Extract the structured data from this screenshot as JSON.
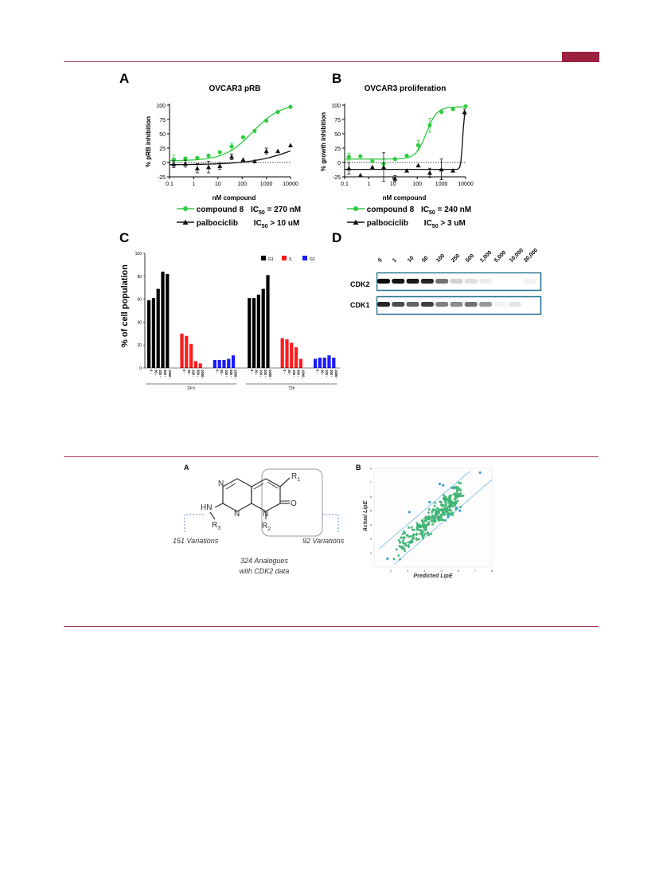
{
  "header": {
    "accent_color": "#9c2040"
  },
  "figure1": {
    "panels": {
      "A": {
        "letter": "A",
        "title": "OVCAR3 pRB",
        "ylabel": "% pRB inhibition",
        "xlabel": "nM compound",
        "legend": [
          {
            "name": "compound 8",
            "ic50": "IC50 = 270 nM",
            "ic_pre": "IC",
            "ic_sub": "50",
            "ic_post": " = 270 nM",
            "color": "#2ecc40",
            "marker": "circle"
          },
          {
            "name": "palbociclib",
            "ic50": "IC50 > 10 uM",
            "ic_pre": "IC",
            "ic_sub": "50",
            "ic_post": " > 10 uM",
            "color": "#111111",
            "marker": "triangle"
          }
        ]
      },
      "B": {
        "letter": "B",
        "title": "OVCAR3 proliferation",
        "ylabel": "% growth inhibition",
        "xlabel": "nM compound",
        "legend": [
          {
            "name": "compound 8",
            "ic50": "IC50 = 240 nM",
            "ic_pre": "IC",
            "ic_sub": "50",
            "ic_post": " = 240 nM",
            "color": "#2ecc40",
            "marker": "circle"
          },
          {
            "name": "palbociclib",
            "ic50": "IC50 > 3 uM",
            "ic_pre": "IC",
            "ic_sub": "50",
            "ic_post": " > 3 uM",
            "color": "#111111",
            "marker": "triangle"
          }
        ]
      },
      "C": {
        "letter": "C",
        "ylabel": "% of cell population"
      },
      "D": {
        "letter": "D",
        "lanes": [
          "0",
          "1",
          "10",
          "50",
          "100",
          "250",
          "500",
          "1,000",
          "5,000",
          "10,000",
          "30,000"
        ],
        "rows": [
          "CDK2",
          "CDK1"
        ],
        "cdk2_intensity": [
          0.95,
          0.92,
          0.9,
          0.85,
          0.55,
          0.18,
          0.12,
          0.08,
          0.0,
          0.0,
          0.05
        ],
        "cdk1_intensity": [
          0.85,
          0.7,
          0.6,
          0.75,
          0.5,
          0.45,
          0.55,
          0.4,
          0.05,
          0.1,
          0.0
        ]
      }
    }
  },
  "figure2": {
    "A": {
      "letter": "A",
      "r1": "R",
      "r1_sub": "1",
      "r2": "R",
      "r2_sub": "2",
      "r3": "R",
      "r3_sub": "3",
      "hn": "HN",
      "n_labels": [
        "N",
        "N",
        "N"
      ],
      "o_label": "O",
      "left_variations": "151 Variations",
      "right_variations": "92 Variations",
      "analogues_line1": "324 Analogues",
      "analogues_line2": "with CDK2 data"
    },
    "B": {
      "letter": "B",
      "xlabel": "Predicted LipE",
      "ylabel": "Actual LipE"
    }
  },
  "chart_data": [
    {
      "type": "scatter",
      "title": "OVCAR3 pRB",
      "xlabel": "nM compound",
      "ylabel": "% pRB inhibition",
      "xscale": "log",
      "xlim": [
        0.1,
        10000
      ],
      "ylim": [
        -25,
        100
      ],
      "xticks": [
        "0.1",
        "1",
        "10",
        "100",
        "1000",
        "10000"
      ],
      "yticks": [
        "-25",
        "0",
        "25",
        "50",
        "75",
        "100"
      ],
      "reference_line": 0,
      "series": [
        {
          "name": "compound 8",
          "color": "#2ecc40",
          "marker": "circle",
          "x": [
            0.15,
            0.45,
            1.4,
            4.1,
            12,
            37,
            110,
            330,
            1000,
            3000,
            10000
          ],
          "y": [
            5,
            7,
            8,
            12,
            18,
            28,
            44,
            55,
            73,
            88,
            97
          ],
          "err": [
            8,
            0,
            0,
            0,
            0,
            6,
            0,
            0,
            0,
            0,
            0
          ],
          "fit": {
            "bottom": 3,
            "top": 103,
            "ic50": 270,
            "hill": 0.75
          }
        },
        {
          "name": "palbociclib",
          "color": "#111111",
          "marker": "triangle",
          "x": [
            0.15,
            0.45,
            1.4,
            4.1,
            12,
            37,
            110,
            330,
            1000,
            3000,
            10000
          ],
          "y": [
            -3,
            -2,
            -10,
            -8,
            -6,
            10,
            5,
            2,
            20,
            20,
            30
          ],
          "err": [
            6,
            6,
            8,
            10,
            6,
            5,
            0,
            0,
            5,
            0,
            0
          ],
          "fit": {
            "bottom": -4,
            "top": 60,
            "ic50": 30000,
            "hill": 0.45
          }
        }
      ]
    },
    {
      "type": "scatter",
      "title": "OVCAR3 proliferation",
      "xlabel": "nM compound",
      "ylabel": "% growth inhibition",
      "xscale": "log",
      "xlim": [
        0.1,
        10000
      ],
      "ylim": [
        -25,
        100
      ],
      "xticks": [
        "0.1",
        "1",
        "10",
        "100",
        "1000",
        "10000"
      ],
      "yticks": [
        "-25",
        "0",
        "25",
        "50",
        "75",
        "100"
      ],
      "reference_line": 0,
      "series": [
        {
          "name": "compound 8",
          "color": "#2ecc40",
          "marker": "circle",
          "x": [
            0.15,
            0.45,
            1.4,
            4.1,
            12,
            37,
            110,
            330,
            1000,
            3000,
            10000
          ],
          "y": [
            10,
            11,
            2,
            -2,
            6,
            12,
            30,
            65,
            88,
            93,
            98
          ],
          "err": [
            6,
            0,
            0,
            0,
            0,
            0,
            8,
            12,
            0,
            0,
            0
          ],
          "fit": {
            "bottom": 6,
            "top": 97,
            "ic50": 240,
            "hill": 2.0
          }
        },
        {
          "name": "palbociclib",
          "color": "#111111",
          "marker": "triangle",
          "x": [
            0.15,
            0.45,
            1.4,
            4.1,
            12,
            37,
            110,
            330,
            1000,
            3000,
            9000
          ],
          "y": [
            -10,
            -22,
            -8,
            -8,
            -28,
            -14,
            -5,
            -18,
            -12,
            -14,
            88
          ],
          "err": [
            10,
            0,
            0,
            25,
            5,
            0,
            0,
            8,
            18,
            0,
            5
          ],
          "fit": {
            "bottom": -12,
            "top": 92,
            "ic50": 7500,
            "hill": 12
          }
        }
      ]
    },
    {
      "type": "bar",
      "ylabel": "% of cell population",
      "ylim": [
        0,
        100
      ],
      "yticks": [
        "0",
        "20",
        "40",
        "60",
        "80",
        "100"
      ],
      "legend": [
        {
          "name": "G1",
          "color": "#000000"
        },
        {
          "name": "S",
          "color": "#ff1a1a"
        },
        {
          "name": "G2",
          "color": "#1a1aff"
        }
      ],
      "concentrations": [
        "0",
        "30",
        "100",
        "300",
        "1000"
      ],
      "groups": [
        {
          "label": "24 h",
          "G1": [
            59,
            61,
            69,
            84,
            82
          ],
          "S": [
            30,
            28,
            21,
            6,
            4
          ],
          "G2": [
            7,
            7,
            7,
            8,
            11
          ]
        },
        {
          "label": "72h",
          "G1": [
            61,
            61,
            64,
            69,
            81
          ],
          "S": [
            26,
            25,
            22,
            18,
            8
          ],
          "G2": [
            8,
            9,
            9,
            11,
            9
          ]
        }
      ]
    },
    {
      "type": "scatter",
      "xlabel": "Predicted LipE",
      "ylabel": "Actual LipE",
      "xlim": [
        1,
        8
      ],
      "ylim": [
        1,
        8
      ],
      "series": [
        {
          "name": "",
          "color": "#3cb371",
          "marker": "circle",
          "points": "many (~320)"
        },
        {
          "name": "",
          "color": "#3c9ce0",
          "marker": "circle",
          "points": "outliers"
        }
      ]
    }
  ]
}
